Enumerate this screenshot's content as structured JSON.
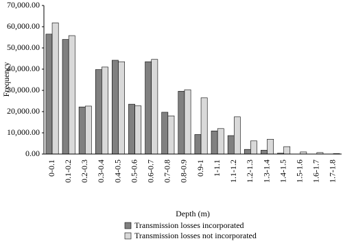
{
  "chart_data": {
    "type": "bar",
    "x_label": "Depth (m)",
    "y_label": "Frequency",
    "categories": [
      "0-0.1",
      "0.1-0.2",
      "0.2-0.3",
      "0.3-0.4",
      "0.4-0.5",
      "0.5-0.6",
      "0.6-0.7",
      "0.7-0.8",
      "0.8-0.9",
      "0.9-1",
      "1-1.1",
      "1.1-1.2",
      "1.2-1.3",
      "1.3-1.4",
      "1.4-1.5",
      "1.5-1.6",
      "1.6-1.7",
      "1.7-1.8"
    ],
    "series": [
      {
        "name": "Transmission losses incorporated",
        "color": "#808080",
        "values": [
          56500,
          54000,
          22200,
          39800,
          44200,
          23500,
          43500,
          19700,
          29600,
          9200,
          10900,
          8700,
          2200,
          1800,
          400,
          0,
          0,
          0
        ]
      },
      {
        "name": "Transmission losses not incorporated",
        "color": "#d9d9d9",
        "values": [
          61800,
          55800,
          22600,
          41000,
          43500,
          22700,
          44600,
          18000,
          30300,
          26500,
          12000,
          17500,
          6200,
          7000,
          3500,
          1000,
          700,
          200
        ]
      }
    ],
    "ylim": [
      0,
      70000
    ],
    "yticks": [
      {
        "value": 0,
        "label": "0.00"
      },
      {
        "value": 10000,
        "label": "10,000.00"
      },
      {
        "value": 20000,
        "label": "20,000.00"
      },
      {
        "value": 30000,
        "label": "30,000.00"
      },
      {
        "value": 40000,
        "label": "40,000.00"
      },
      {
        "value": 50000,
        "label": "50,000.00"
      },
      {
        "value": 60000,
        "label": "60,000.00"
      },
      {
        "value": 70000,
        "label": "70,000.00"
      }
    ],
    "grid": false
  }
}
